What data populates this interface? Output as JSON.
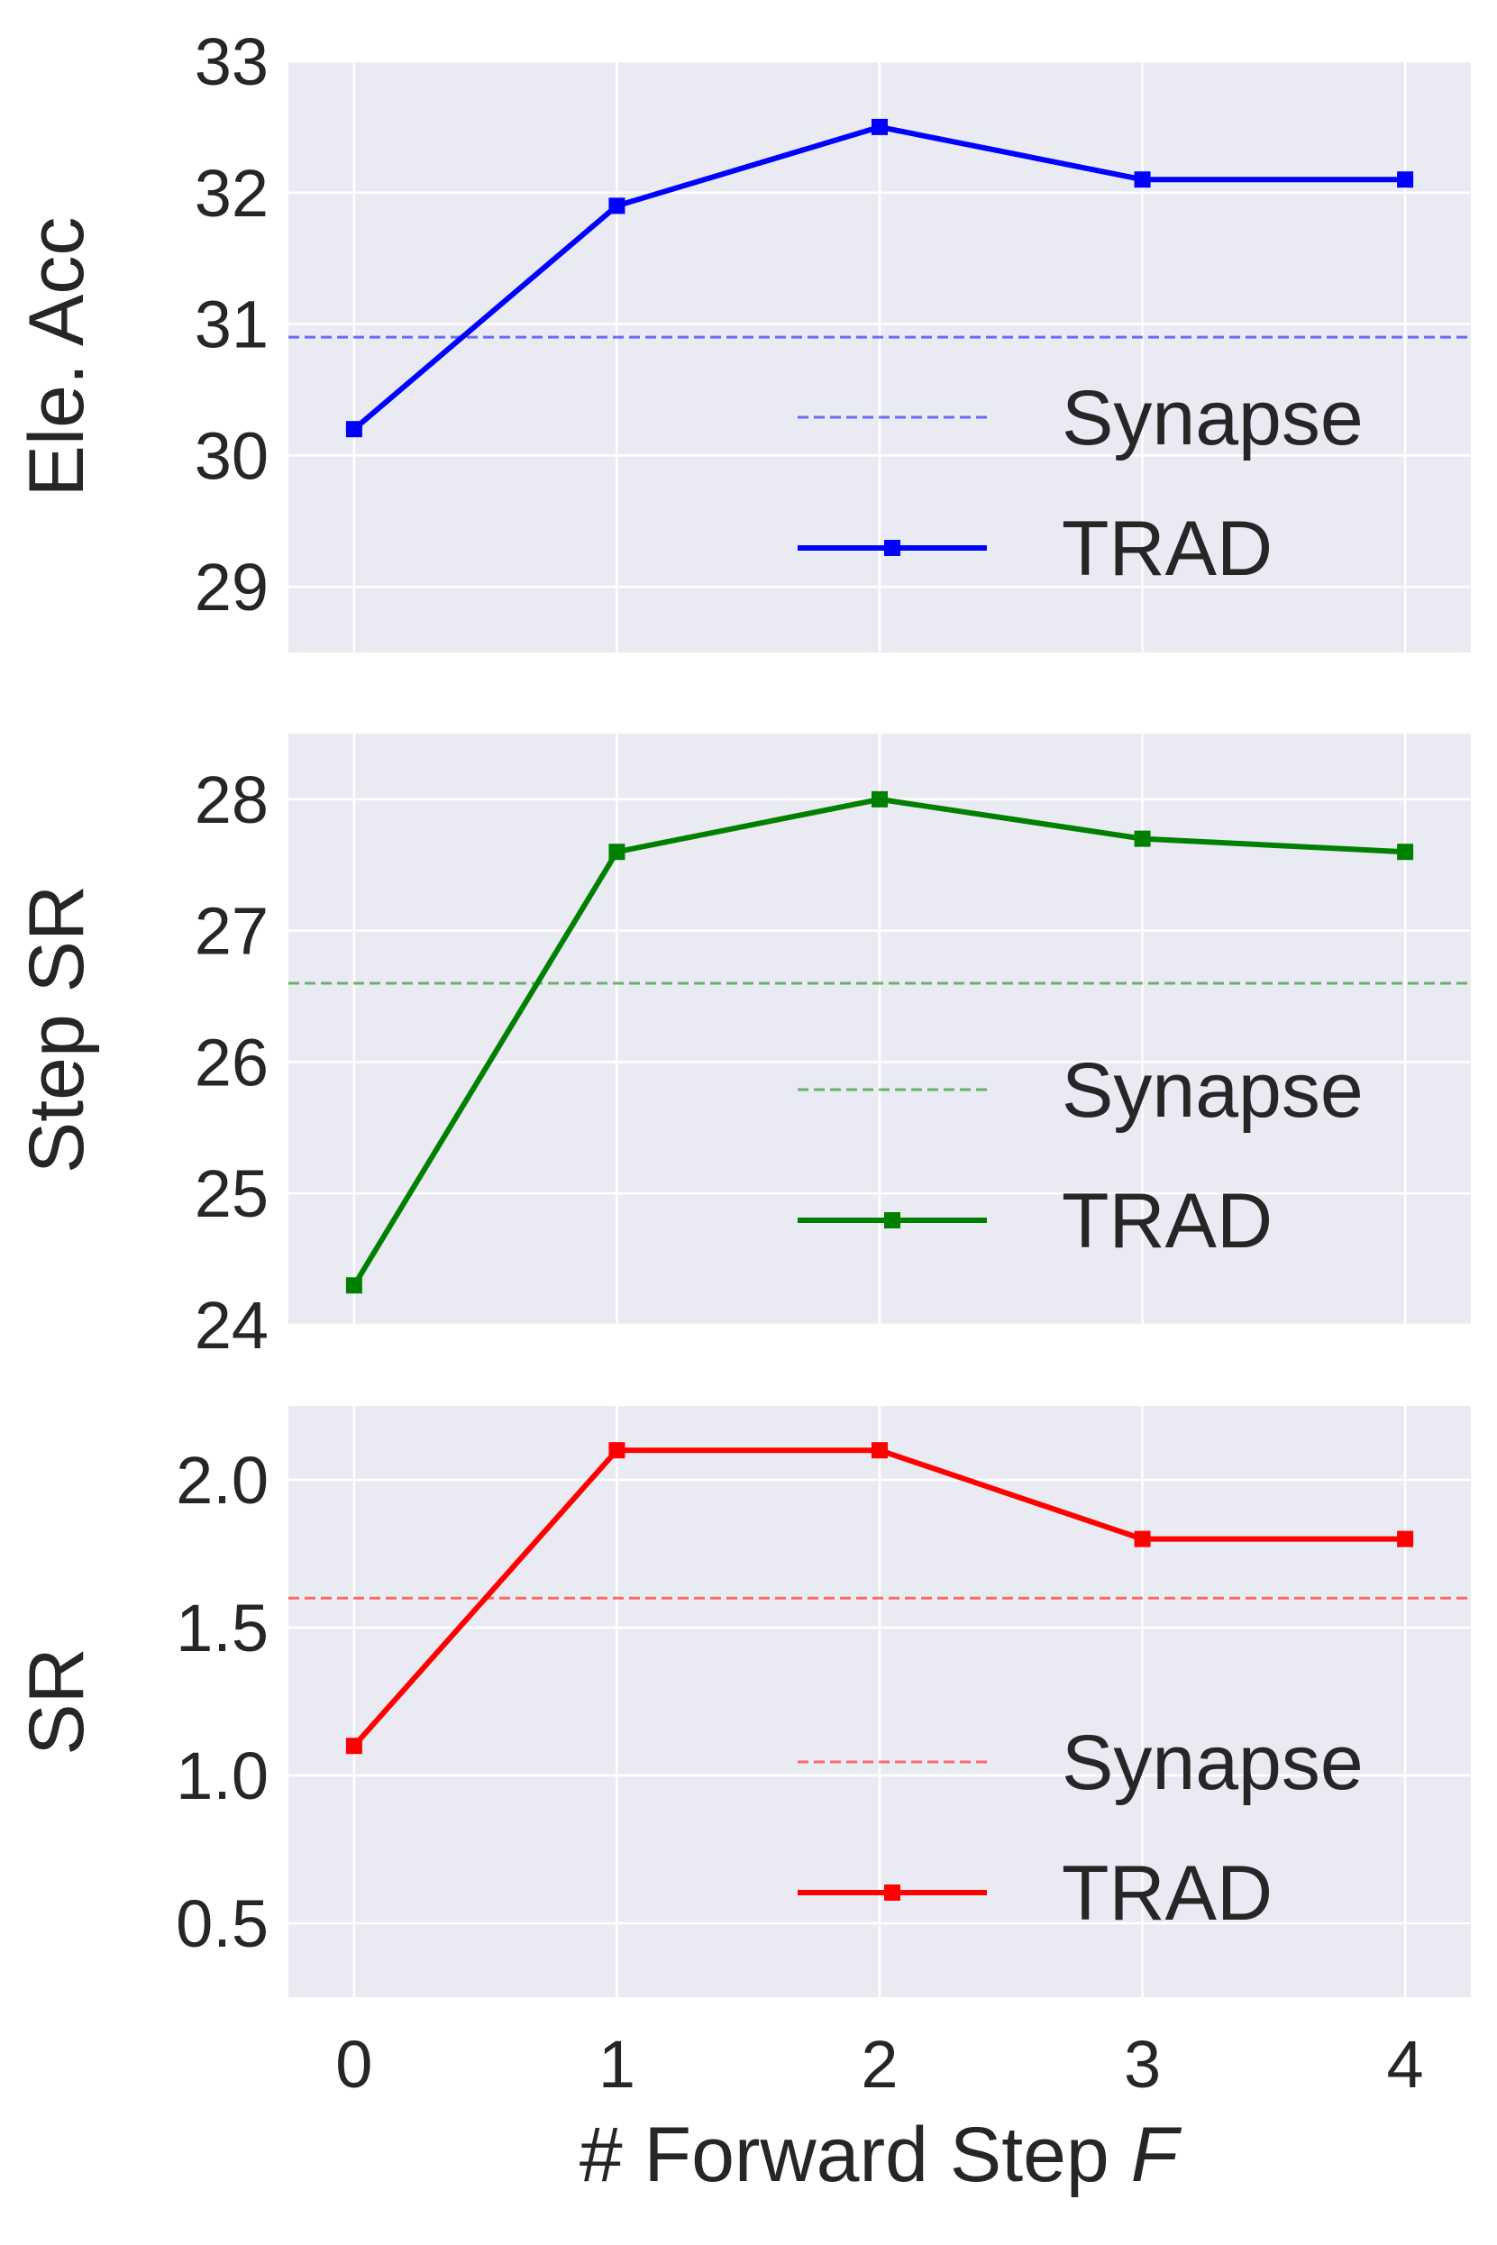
{
  "chart_data": {
    "type": "line",
    "x": [
      0,
      1,
      2,
      3,
      4
    ],
    "xlim": [
      -0.25,
      4.25
    ],
    "xticks": [
      "0",
      "1",
      "2",
      "3",
      "4"
    ],
    "xlabel": "# Forward Step ",
    "xlabel_italic": "F",
    "grid": true,
    "legend_position": "lower-right",
    "panels": [
      {
        "ylabel": "Ele. Acc",
        "ylim": [
          28.5,
          33.0
        ],
        "yticks": [
          29,
          30,
          31,
          32,
          33
        ],
        "ytick_labels": [
          "29",
          "30",
          "31",
          "32",
          "33"
        ],
        "color": "#0000ff",
        "baseline": {
          "name": "Synapse",
          "value": 30.9
        },
        "series": [
          {
            "name": "TRAD",
            "values": [
              30.2,
              31.9,
              32.5,
              32.1,
              32.1
            ]
          }
        ]
      },
      {
        "ylabel": "Step SR",
        "ylim": [
          24.0,
          28.5
        ],
        "yticks": [
          24,
          25,
          26,
          27,
          28
        ],
        "ytick_labels": [
          "24",
          "25",
          "26",
          "27",
          "28"
        ],
        "color": "#008000",
        "baseline": {
          "name": "Synapse",
          "value": 26.6
        },
        "series": [
          {
            "name": "TRAD",
            "values": [
              24.3,
              27.6,
              28.0,
              27.7,
              27.6
            ]
          }
        ]
      },
      {
        "ylabel": "SR",
        "ylim": [
          0.25,
          2.25
        ],
        "yticks": [
          0.5,
          1.0,
          1.5,
          2.0
        ],
        "ytick_labels": [
          "0.5",
          "1.0",
          "1.5",
          "2.0"
        ],
        "color": "#ff0000",
        "baseline": {
          "name": "Synapse",
          "value": 1.6
        },
        "series": [
          {
            "name": "TRAD",
            "values": [
              1.1,
              2.1,
              2.1,
              1.8,
              1.8
            ]
          }
        ]
      }
    ]
  }
}
